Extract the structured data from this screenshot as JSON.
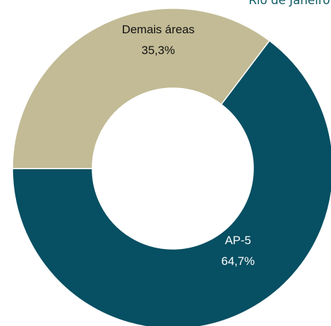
{
  "header": {
    "title_fragment": "Rio de Janeiro,"
  },
  "colors": {
    "background": "#ffffff",
    "header_text": "#0e5b66"
  },
  "chart_data": {
    "type": "pie",
    "donut": true,
    "title": "",
    "legend": "none",
    "categories": [
      "AP-5",
      "Demais áreas"
    ],
    "values": [
      64.7,
      35.3
    ],
    "value_labels": [
      "64,7%",
      "35,3%"
    ],
    "colors": [
      "#074f62",
      "#c2bb95"
    ]
  }
}
